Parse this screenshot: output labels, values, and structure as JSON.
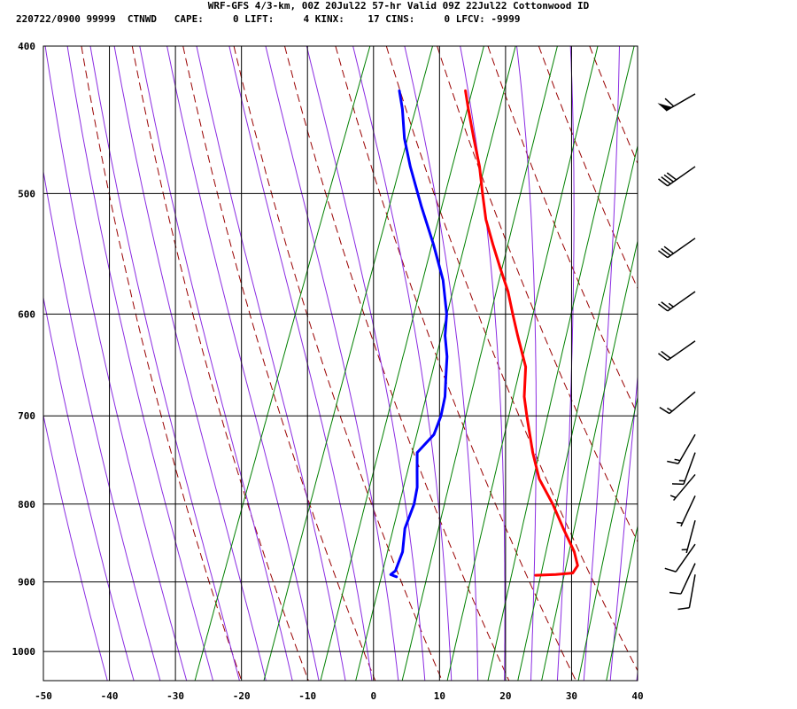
{
  "header": {
    "title": "WRF-GFS 4/3-km, 00Z 20Jul22 57-hr Valid 09Z 22Jul22 Cottonwood ID",
    "stats": "220722/0900 99999  CTNWD   CAPE:     0 LIFT:     4 KINX:    17 CINS:     0 LFCV: -9999"
  },
  "chart_data": {
    "type": "skew-t",
    "title": "WRF-GFS 4/3-km, 00Z 20Jul22 57-hr Valid 09Z 22Jul22 Cottonwood ID",
    "xlabel": "",
    "ylabel": "",
    "x_unit": "degC",
    "y_unit": "hPa",
    "xlim": [
      -50,
      40
    ],
    "ylim": [
      1045,
      400
    ],
    "y_scale": "log",
    "x_ticks": [
      -50,
      -40,
      -30,
      -20,
      -10,
      0,
      10,
      20,
      30,
      40
    ],
    "y_ticks": [
      400,
      500,
      600,
      700,
      800,
      900,
      1000
    ],
    "grid": true,
    "colors": {
      "temperature": "#ff0000",
      "dewpoint": "#0000ff",
      "dry_adiabat": "#990000",
      "moist_adiabat": "#8a2be2",
      "mixing_ratio": "#008000",
      "grid": "#000000"
    },
    "series": [
      {
        "key": "temperature",
        "points": [
          {
            "p": 891,
            "t": 18.5
          },
          {
            "p": 890,
            "t": 21.5
          },
          {
            "p": 888,
            "t": 24.0
          },
          {
            "p": 878,
            "t": 24.3
          },
          {
            "p": 860,
            "t": 23.0
          },
          {
            "p": 830,
            "t": 20.0
          },
          {
            "p": 800,
            "t": 17.0
          },
          {
            "p": 770,
            "t": 13.5
          },
          {
            "p": 740,
            "t": 11.0
          },
          {
            "p": 700,
            "t": 8.0
          },
          {
            "p": 680,
            "t": 6.5
          },
          {
            "p": 650,
            "t": 5.0
          },
          {
            "p": 620,
            "t": 2.0
          },
          {
            "p": 600,
            "t": 0.0
          },
          {
            "p": 580,
            "t": -2.0
          },
          {
            "p": 560,
            "t": -4.5
          },
          {
            "p": 540,
            "t": -7.0
          },
          {
            "p": 520,
            "t": -9.5
          },
          {
            "p": 500,
            "t": -11.5
          },
          {
            "p": 480,
            "t": -13.5
          },
          {
            "p": 460,
            "t": -16.0
          },
          {
            "p": 440,
            "t": -18.5
          },
          {
            "p": 428,
            "t": -20.0
          }
        ]
      },
      {
        "key": "dewpoint",
        "points": [
          {
            "p": 893,
            "t": -2.5
          },
          {
            "p": 890,
            "t": -3.5
          },
          {
            "p": 885,
            "t": -3.0
          },
          {
            "p": 860,
            "t": -3.0
          },
          {
            "p": 830,
            "t": -4.0
          },
          {
            "p": 800,
            "t": -4.0
          },
          {
            "p": 780,
            "t": -4.5
          },
          {
            "p": 760,
            "t": -5.5
          },
          {
            "p": 740,
            "t": -6.5
          },
          {
            "p": 720,
            "t": -5.0
          },
          {
            "p": 710,
            "t": -5.0
          },
          {
            "p": 700,
            "t": -5.0
          },
          {
            "p": 680,
            "t": -5.5
          },
          {
            "p": 660,
            "t": -6.5
          },
          {
            "p": 640,
            "t": -7.5
          },
          {
            "p": 620,
            "t": -9.0
          },
          {
            "p": 600,
            "t": -10.0
          },
          {
            "p": 570,
            "t": -12.5
          },
          {
            "p": 540,
            "t": -16.0
          },
          {
            "p": 510,
            "t": -20.0
          },
          {
            "p": 480,
            "t": -24.0
          },
          {
            "p": 460,
            "t": -26.5
          },
          {
            "p": 440,
            "t": -28.5
          },
          {
            "p": 428,
            "t": -30.0
          }
        ]
      }
    ],
    "wind_barbs": [
      {
        "p": 430,
        "dir": 240,
        "speed_kt": 60
      },
      {
        "p": 480,
        "dir": 235,
        "speed_kt": 40
      },
      {
        "p": 535,
        "dir": 235,
        "speed_kt": 30
      },
      {
        "p": 580,
        "dir": 235,
        "speed_kt": 25
      },
      {
        "p": 625,
        "dir": 235,
        "speed_kt": 20
      },
      {
        "p": 675,
        "dir": 230,
        "speed_kt": 15
      },
      {
        "p": 720,
        "dir": 210,
        "speed_kt": 15
      },
      {
        "p": 740,
        "dir": 200,
        "speed_kt": 15
      },
      {
        "p": 765,
        "dir": 220,
        "speed_kt": 5
      },
      {
        "p": 790,
        "dir": 205,
        "speed_kt": 5
      },
      {
        "p": 820,
        "dir": 195,
        "speed_kt": 5
      },
      {
        "p": 850,
        "dir": 215,
        "speed_kt": 10
      },
      {
        "p": 875,
        "dir": 205,
        "speed_kt": 10
      },
      {
        "p": 890,
        "dir": 190,
        "speed_kt": 10
      }
    ]
  }
}
